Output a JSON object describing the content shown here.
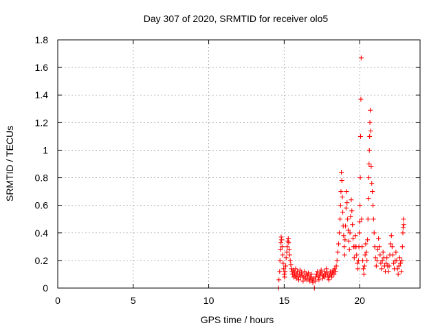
{
  "chart_data": {
    "type": "scatter",
    "title": "Day 307 of 2020, SRMTID for receiver olo5",
    "xlabel": "GPS time / hours",
    "ylabel": "SRMTID / TECUs",
    "xlim": [
      0,
      24
    ],
    "ylim": [
      0,
      1.8
    ],
    "xticks": [
      "0",
      "5",
      "10",
      "15",
      "20"
    ],
    "yticks": [
      "0",
      "0.2",
      "0.4",
      "0.6",
      "0.8",
      "1",
      "1.2",
      "1.4",
      "1.6",
      "1.8"
    ],
    "grid": true,
    "marker": "+",
    "series_color": "#ff0000",
    "series": [
      {
        "name": "SRMTID",
        "points": [
          [
            14.62,
            0.0
          ],
          [
            14.65,
            0.06
          ],
          [
            14.7,
            0.12
          ],
          [
            14.72,
            0.2
          ],
          [
            14.75,
            0.28
          ],
          [
            14.78,
            0.33
          ],
          [
            14.8,
            0.37
          ],
          [
            14.83,
            0.35
          ],
          [
            14.86,
            0.3
          ],
          [
            14.9,
            0.24
          ],
          [
            14.93,
            0.18
          ],
          [
            14.97,
            0.14
          ],
          [
            15.0,
            0.1
          ],
          [
            15.03,
            0.08
          ],
          [
            15.06,
            0.12
          ],
          [
            15.1,
            0.16
          ],
          [
            15.13,
            0.22
          ],
          [
            15.17,
            0.26
          ],
          [
            15.2,
            0.3
          ],
          [
            15.24,
            0.34
          ],
          [
            15.27,
            0.36
          ],
          [
            15.3,
            0.33
          ],
          [
            15.33,
            0.28
          ],
          [
            15.37,
            0.24
          ],
          [
            15.4,
            0.2
          ],
          [
            15.44,
            0.17
          ],
          [
            15.48,
            0.14
          ],
          [
            15.52,
            0.12
          ],
          [
            15.56,
            0.1
          ],
          [
            15.6,
            0.13
          ],
          [
            15.64,
            0.08
          ],
          [
            15.68,
            0.11
          ],
          [
            15.72,
            0.09
          ],
          [
            15.76,
            0.14
          ],
          [
            15.8,
            0.07
          ],
          [
            15.84,
            0.1
          ],
          [
            15.88,
            0.12
          ],
          [
            15.92,
            0.08
          ],
          [
            15.96,
            0.06
          ],
          [
            16.0,
            0.1
          ],
          [
            16.05,
            0.13
          ],
          [
            16.1,
            0.08
          ],
          [
            16.15,
            0.11
          ],
          [
            16.2,
            0.09
          ],
          [
            16.25,
            0.05
          ],
          [
            16.3,
            0.08
          ],
          [
            16.35,
            0.12
          ],
          [
            16.4,
            0.07
          ],
          [
            16.45,
            0.1
          ],
          [
            16.5,
            0.06
          ],
          [
            16.55,
            0.09
          ],
          [
            16.6,
            0.11
          ],
          [
            16.65,
            0.07
          ],
          [
            16.7,
            0.05
          ],
          [
            16.75,
            0.08
          ],
          [
            16.8,
            0.1
          ],
          [
            16.85,
            0.06
          ],
          [
            16.9,
            0.04
          ],
          [
            16.95,
            0.07
          ],
          [
            17.0,
            0.0
          ],
          [
            17.05,
            0.05
          ],
          [
            17.1,
            0.08
          ],
          [
            17.15,
            0.1
          ],
          [
            17.2,
            0.12
          ],
          [
            17.25,
            0.08
          ],
          [
            17.3,
            0.06
          ],
          [
            17.35,
            0.09
          ],
          [
            17.4,
            0.11
          ],
          [
            17.45,
            0.13
          ],
          [
            17.5,
            0.1
          ],
          [
            17.55,
            0.07
          ],
          [
            17.6,
            0.09
          ],
          [
            17.65,
            0.12
          ],
          [
            17.7,
            0.08
          ],
          [
            17.75,
            0.1
          ],
          [
            17.8,
            0.14
          ],
          [
            17.85,
            0.11
          ],
          [
            17.9,
            0.08
          ],
          [
            17.95,
            0.06
          ],
          [
            18.0,
            0.09
          ],
          [
            18.05,
            0.12
          ],
          [
            18.1,
            0.1
          ],
          [
            18.15,
            0.08
          ],
          [
            18.2,
            0.11
          ],
          [
            18.25,
            0.13
          ],
          [
            18.3,
            0.1
          ],
          [
            18.35,
            0.14
          ],
          [
            18.4,
            0.12
          ],
          [
            18.45,
            0.16
          ],
          [
            18.5,
            0.2
          ],
          [
            18.55,
            0.26
          ],
          [
            18.6,
            0.32
          ],
          [
            18.65,
            0.4
          ],
          [
            18.7,
            0.5
          ],
          [
            18.73,
            0.6
          ],
          [
            18.76,
            0.7
          ],
          [
            18.79,
            0.84
          ],
          [
            18.82,
            0.78
          ],
          [
            18.85,
            0.66
          ],
          [
            18.88,
            0.55
          ],
          [
            18.91,
            0.45
          ],
          [
            18.94,
            0.38
          ],
          [
            18.97,
            0.3
          ],
          [
            19.0,
            0.24
          ],
          [
            19.03,
            0.35
          ],
          [
            19.06,
            0.45
          ],
          [
            19.1,
            0.58
          ],
          [
            19.13,
            0.7
          ],
          [
            19.16,
            0.62
          ],
          [
            19.2,
            0.5
          ],
          [
            19.24,
            0.42
          ],
          [
            19.28,
            0.34
          ],
          [
            19.32,
            0.28
          ],
          [
            19.36,
            0.4
          ],
          [
            19.4,
            0.52
          ],
          [
            19.44,
            0.64
          ],
          [
            19.48,
            0.56
          ],
          [
            19.52,
            0.46
          ],
          [
            19.56,
            0.36
          ],
          [
            19.6,
            0.3
          ],
          [
            19.64,
            0.22
          ],
          [
            19.68,
            0.3
          ],
          [
            19.72,
            0.38
          ],
          [
            19.76,
            0.3
          ],
          [
            19.8,
            0.24
          ],
          [
            19.84,
            0.18
          ],
          [
            19.88,
            0.14
          ],
          [
            19.92,
            0.2
          ],
          [
            19.95,
            0.3
          ],
          [
            19.98,
            0.4
          ],
          [
            20.0,
            0.48
          ],
          [
            20.02,
            0.6
          ],
          [
            20.04,
            0.8
          ],
          [
            20.06,
            1.1
          ],
          [
            20.08,
            1.37
          ],
          [
            20.1,
            1.67
          ],
          [
            20.13,
            0.5
          ],
          [
            20.16,
            0.3
          ],
          [
            20.2,
            0.2
          ],
          [
            20.24,
            0.14
          ],
          [
            20.28,
            0.1
          ],
          [
            20.32,
            0.16
          ],
          [
            20.36,
            0.24
          ],
          [
            20.4,
            0.32
          ],
          [
            20.44,
            0.26
          ],
          [
            20.48,
            0.2
          ],
          [
            20.52,
            0.35
          ],
          [
            20.55,
            0.5
          ],
          [
            20.58,
            0.65
          ],
          [
            20.6,
            0.8
          ],
          [
            20.62,
            0.9
          ],
          [
            20.64,
            1.0
          ],
          [
            20.66,
            1.1
          ],
          [
            20.68,
            1.2
          ],
          [
            20.7,
            1.29
          ],
          [
            20.73,
            1.14
          ],
          [
            20.76,
            0.88
          ],
          [
            20.8,
            0.76
          ],
          [
            20.84,
            0.7
          ],
          [
            20.88,
            0.6
          ],
          [
            20.92,
            0.5
          ],
          [
            20.96,
            0.4
          ],
          [
            21.0,
            0.3
          ],
          [
            21.05,
            0.22
          ],
          [
            21.1,
            0.16
          ],
          [
            21.15,
            0.2
          ],
          [
            21.2,
            0.28
          ],
          [
            21.25,
            0.36
          ],
          [
            21.3,
            0.3
          ],
          [
            21.35,
            0.24
          ],
          [
            21.4,
            0.18
          ],
          [
            21.45,
            0.14
          ],
          [
            21.5,
            0.2
          ],
          [
            21.55,
            0.26
          ],
          [
            21.6,
            0.22
          ],
          [
            21.65,
            0.16
          ],
          [
            21.7,
            0.12
          ],
          [
            21.75,
            0.18
          ],
          [
            21.8,
            0.22
          ],
          [
            21.85,
            0.16
          ],
          [
            21.9,
            0.12
          ],
          [
            21.95,
            0.16
          ],
          [
            22.0,
            0.24
          ],
          [
            22.05,
            0.32
          ],
          [
            22.1,
            0.38
          ],
          [
            22.15,
            0.3
          ],
          [
            22.2,
            0.24
          ],
          [
            22.25,
            0.18
          ],
          [
            22.3,
            0.14
          ],
          [
            22.35,
            0.2
          ],
          [
            22.4,
            0.26
          ],
          [
            22.45,
            0.2
          ],
          [
            22.5,
            0.14
          ],
          [
            22.55,
            0.1
          ],
          [
            22.6,
            0.16
          ],
          [
            22.65,
            0.22
          ],
          [
            22.7,
            0.18
          ],
          [
            22.75,
            0.12
          ],
          [
            22.8,
            0.2
          ],
          [
            22.83,
            0.3
          ],
          [
            22.86,
            0.4
          ],
          [
            22.88,
            0.44
          ],
          [
            22.9,
            0.5
          ],
          [
            22.92,
            0.46
          ]
        ]
      }
    ]
  }
}
